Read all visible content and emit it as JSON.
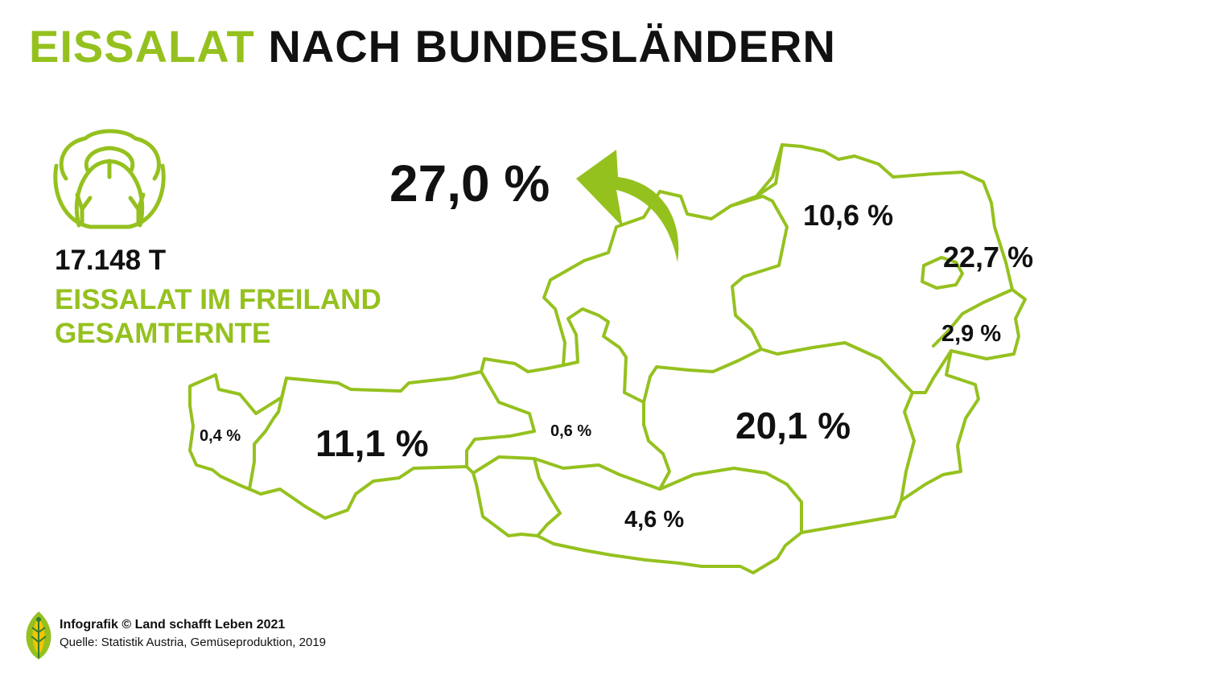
{
  "title": {
    "accent": "EISSALAT",
    "rest": "NACH BUNDESLÄNDERN"
  },
  "summary": {
    "total": "17.148 T",
    "line1": "EISSALAT IM FREILAND",
    "line2": "GESAMTERNTE"
  },
  "icons": {
    "lettuce": "lettuce-icon",
    "arrow": "curved-arrow-icon",
    "logo": "leaf-logo-icon"
  },
  "colors": {
    "accent": "#95c11f",
    "text": "#111111",
    "background": "#ffffff"
  },
  "regions": {
    "oberoesterreich": "27,0 %",
    "niederoesterreich": "10,6 %",
    "wien": "22,7 %",
    "burgenland": "2,9 %",
    "steiermark": "20,1 %",
    "kaernten": "4,6 %",
    "salzburg": "0,6 %",
    "tirol": "11,1 %",
    "vorarlberg": "0,4 %"
  },
  "footer": {
    "credit": "Infografik © Land schafft Leben 2021",
    "source": "Quelle: Statistik Austria, Gemüseproduktion, 2019"
  }
}
